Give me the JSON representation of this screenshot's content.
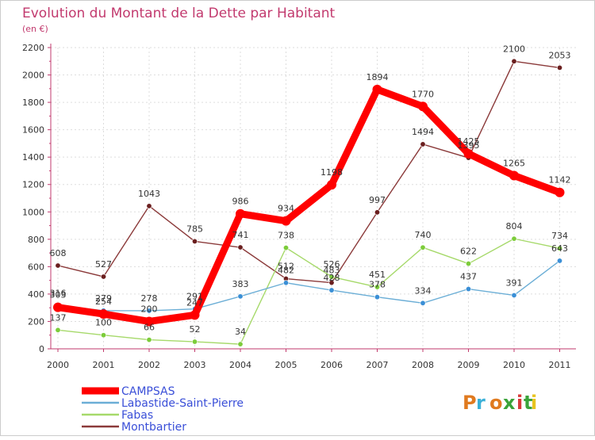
{
  "chart_data": {
    "type": "line",
    "title": "Evolution du Montant de la Dette par Habitant",
    "subtitle": "(en €)",
    "x": [
      "2000",
      "2001",
      "2002",
      "2003",
      "2004",
      "2005",
      "2006",
      "2007",
      "2008",
      "2009",
      "2010",
      "2011"
    ],
    "ylim": [
      0,
      2200
    ],
    "yticks": [
      0,
      200,
      400,
      600,
      800,
      1000,
      1200,
      1400,
      1600,
      1800,
      2000,
      2200
    ],
    "grid": true,
    "legend_position": "bottom-left",
    "series": [
      {
        "name": "Montbartier",
        "color": "#8b3a3a",
        "marker": "#6b1f1f",
        "values": [
          608,
          527,
          1043,
          785,
          741,
          512,
          483,
          997,
          1494,
          1395,
          2100,
          2053
        ]
      },
      {
        "name": "Fabas",
        "color": "#a6d96a",
        "marker": "#7ccc3a",
        "values": [
          137,
          100,
          66,
          52,
          34,
          738,
          526,
          451,
          740,
          622,
          804,
          734
        ]
      },
      {
        "name": "Labastide-Saint-Pierre",
        "color": "#6baed6",
        "marker": "#3a8fd6",
        "values": [
          316,
          279,
          278,
          291,
          383,
          482,
          428,
          378,
          334,
          437,
          391,
          643
        ]
      },
      {
        "name": "CAMPSAS",
        "color": "#ff0000",
        "marker": "#ff0000",
        "values": [
          303,
          254,
          200,
          247,
          986,
          934,
          1198,
          1894,
          1770,
          1425,
          1265,
          1142
        ]
      }
    ],
    "legend_order": [
      "CAMPSAS",
      "Labastide-Saint-Pierre",
      "Fabas",
      "Montbartier"
    ]
  },
  "logo": {
    "text": "Proxiti",
    "icon": "proxiti-logo"
  }
}
